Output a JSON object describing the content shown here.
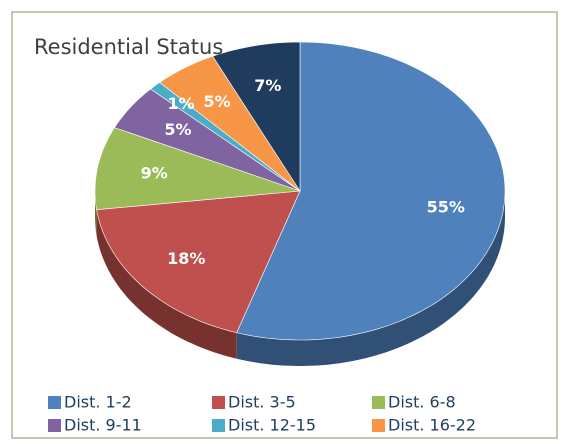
{
  "chart_data": {
    "type": "pie",
    "title": "Residential Status",
    "categories": [
      "Dist. 1-2",
      "Dist. 3-5",
      "Dist. 6-8",
      "Dist. 9-11",
      "Dist. 12-15",
      "Dist. 16-22",
      null
    ],
    "values": [
      55,
      18,
      9,
      5,
      1,
      5,
      7
    ],
    "value_labels": [
      "55%",
      "18%",
      "9%",
      "5%",
      "1%",
      "5%",
      "7%"
    ],
    "colors": [
      "#4f81bd",
      "#c0504d",
      "#9bbb59",
      "#8064a2",
      "#4bacc6",
      "#f79646",
      "#1f3b5e"
    ],
    "legend": "bottom"
  }
}
